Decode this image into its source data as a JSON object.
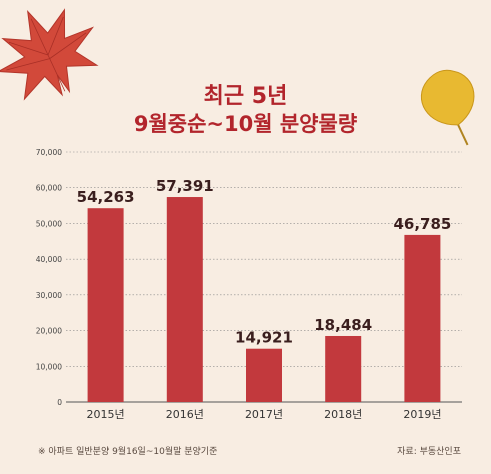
{
  "title": [
    "최근 5년",
    "9월중순~10월 분양물량"
  ],
  "footnote": "※ 아파트 일반분양 9월16일~10월말 분양기준",
  "source": "자료: 부동산인포",
  "colors": {
    "bar": "#c2393d",
    "title": "#b2252c",
    "background": "#f8ede2",
    "label": "#3a1e1e"
  },
  "decorations": [
    "maple-leaf",
    "ginkgo-leaf"
  ],
  "chart_data": {
    "type": "bar",
    "categories": [
      "2015년",
      "2016년",
      "2017년",
      "2018년",
      "2019년"
    ],
    "values": [
      54263,
      57391,
      14921,
      18484,
      46785
    ],
    "data_labels": [
      "54,263",
      "57,391",
      "14,921",
      "18,484",
      "46,785"
    ],
    "ylim": [
      0,
      70000
    ],
    "yticks": [
      0,
      10000,
      20000,
      30000,
      40000,
      50000,
      60000,
      70000
    ],
    "ytick_labels": [
      "0",
      "10,000",
      "20,000",
      "30,000",
      "40,000",
      "50,000",
      "60,000",
      "70,000"
    ],
    "grid": true,
    "legend": "none"
  }
}
